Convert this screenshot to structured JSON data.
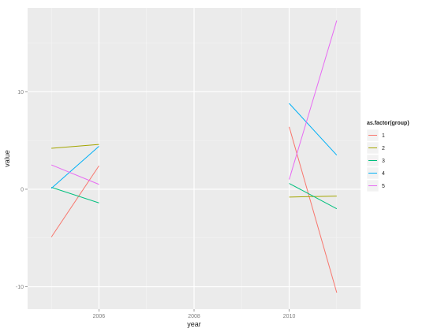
{
  "chart_data": {
    "type": "line",
    "xlabel": "year",
    "ylabel": "value",
    "xlim": [
      2004.5,
      2011.5
    ],
    "ylim": [
      -12.3,
      18.6
    ],
    "x_ticks": [
      2006,
      2008,
      2010
    ],
    "x_minor_ticks": [
      2005,
      2007,
      2009,
      2011
    ],
    "y_ticks": [
      -10,
      0,
      10
    ],
    "y_minor_ticks": [
      -5,
      5,
      15
    ],
    "grid": true,
    "legend": {
      "title": "as.factor(group)",
      "position": "right"
    },
    "series": [
      {
        "name": "1",
        "color": "#F8766D",
        "segments": [
          [
            [
              2005,
              -4.9
            ],
            [
              2006,
              2.4
            ]
          ],
          [
            [
              2010,
              6.4
            ],
            [
              2011,
              -10.6
            ]
          ]
        ]
      },
      {
        "name": "2",
        "color": "#A3A500",
        "segments": [
          [
            [
              2005,
              4.2
            ],
            [
              2006,
              4.6
            ]
          ],
          [
            [
              2010,
              -0.8
            ],
            [
              2011,
              -0.7
            ]
          ]
        ]
      },
      {
        "name": "3",
        "color": "#00BF7D",
        "segments": [
          [
            [
              2005,
              0.2
            ],
            [
              2006,
              -1.4
            ]
          ],
          [
            [
              2010,
              0.6
            ],
            [
              2011,
              -2.0
            ]
          ]
        ]
      },
      {
        "name": "4",
        "color": "#00B0F6",
        "segments": [
          [
            [
              2005,
              0.1
            ],
            [
              2006,
              4.4
            ]
          ],
          [
            [
              2010,
              8.8
            ],
            [
              2011,
              3.5
            ]
          ]
        ]
      },
      {
        "name": "5",
        "color": "#E76BF3",
        "segments": [
          [
            [
              2005,
              2.5
            ],
            [
              2006,
              0.5
            ]
          ],
          [
            [
              2010,
              1.0
            ],
            [
              2011,
              17.3
            ]
          ]
        ]
      }
    ]
  }
}
